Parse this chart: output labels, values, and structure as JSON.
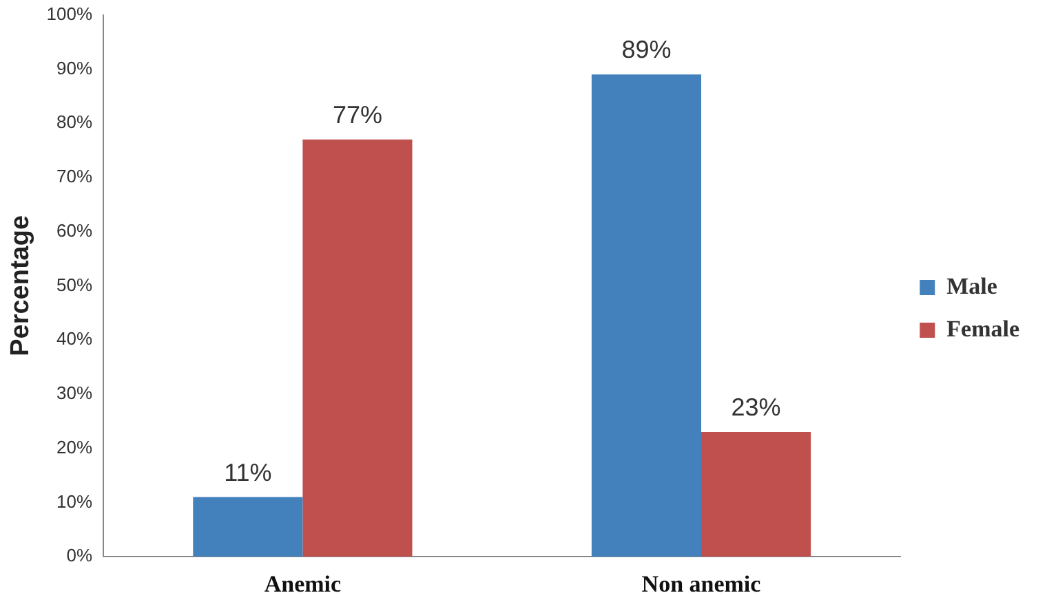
{
  "chart_data": {
    "type": "bar",
    "ylabel": "Percentage",
    "categories": [
      "Anemic",
      "Non anemic"
    ],
    "series": [
      {
        "name": "Male",
        "color": "#4381bd",
        "values": [
          11,
          89
        ],
        "value_labels": [
          "11%",
          "89%"
        ]
      },
      {
        "name": "Female",
        "color": "#c0504d",
        "values": [
          77,
          23
        ],
        "value_labels": [
          "77%",
          "23%"
        ]
      }
    ],
    "ylim": [
      0,
      100
    ],
    "yticks": [
      {
        "value": 0,
        "label": "0%"
      },
      {
        "value": 10,
        "label": "10%"
      },
      {
        "value": 20,
        "label": "20%"
      },
      {
        "value": 30,
        "label": "30%"
      },
      {
        "value": 40,
        "label": "40%"
      },
      {
        "value": 50,
        "label": "50%"
      },
      {
        "value": 60,
        "label": "60%"
      },
      {
        "value": 70,
        "label": "70%"
      },
      {
        "value": 80,
        "label": "80%"
      },
      {
        "value": 90,
        "label": "90%"
      },
      {
        "value": 100,
        "label": "100%"
      }
    ],
    "grid": false,
    "legend": "right"
  }
}
